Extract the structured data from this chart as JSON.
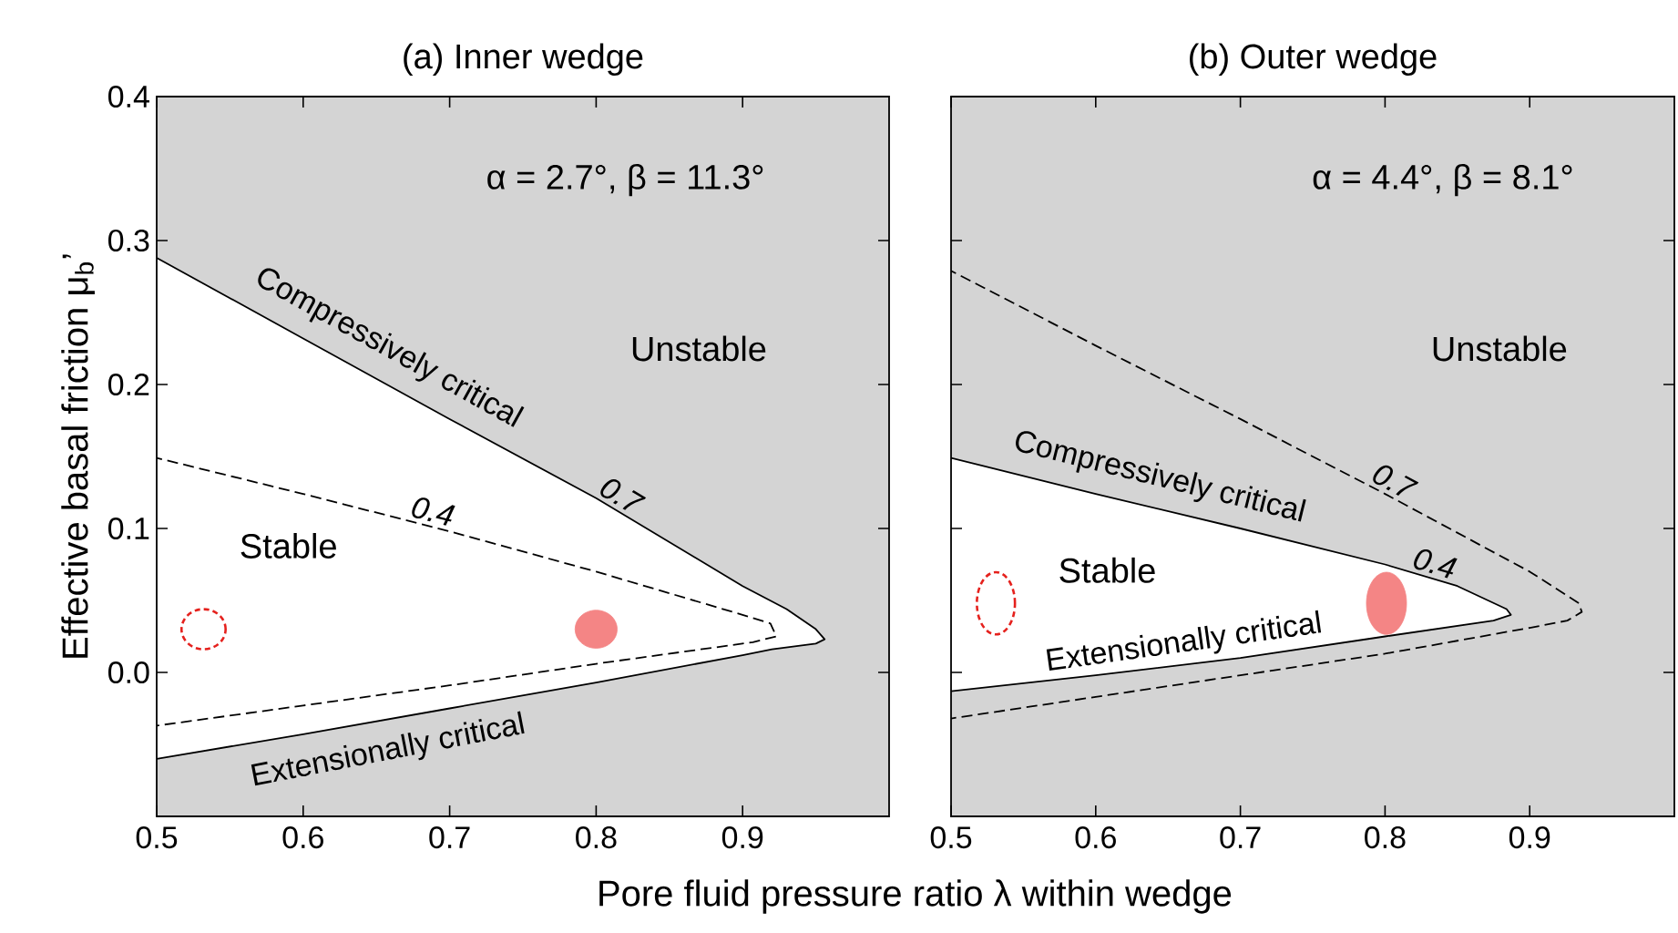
{
  "chart_data": [
    {
      "type": "line",
      "title": "(a) Inner wedge",
      "xlabel": "Pore fluid pressure ratio λ within wedge",
      "ylabel": "Effective basal friction μ$_{b}$’",
      "xlim": [
        0.5,
        1.0
      ],
      "ylim": [
        -0.1,
        0.4
      ],
      "xticks": [
        0.5,
        0.6,
        0.7,
        0.8,
        0.9
      ],
      "yticks": [
        {
          "value": 0,
          "label": "0.0"
        },
        0.1,
        0.2,
        0.3,
        0.4
      ],
      "bands": [
        {
          "axis": "y",
          "from": -0.1,
          "to": 0.4,
          "color": "#d4d4d4"
        }
      ],
      "series": [
        {
          "name": "0.7",
          "line_style": "solid",
          "color": "#000000",
          "x": [
            0.5,
            0.6,
            0.7,
            0.8,
            0.9,
            0.93,
            0.95,
            0.956,
            0.95,
            0.92,
            0.9,
            0.8,
            0.7,
            0.6,
            0.5
          ],
          "values": [
            0.288,
            0.232,
            0.176,
            0.121,
            0.06,
            0.044,
            0.03,
            0.023,
            0.02,
            0.016,
            0.012,
            -0.007,
            -0.025,
            -0.043,
            -0.06
          ]
        },
        {
          "name": "0.4",
          "line_style": "dashed",
          "color": "#000000",
          "x": [
            0.5,
            0.6,
            0.7,
            0.8,
            0.9,
            0.919,
            0.923,
            0.907,
            0.8,
            0.7,
            0.6,
            0.5
          ],
          "values": [
            0.149,
            0.124,
            0.098,
            0.07,
            0.04,
            0.034,
            0.025,
            0.021,
            0.006,
            -0.009,
            -0.023,
            -0.037
          ]
        },
        {
          "type": "scatter",
          "marker": "circle",
          "line_style": "dashed",
          "color": "#e5211d",
          "x": [
            0.532
          ],
          "values": [
            0.03
          ]
        },
        {
          "type": "scatter",
          "marker": "circle",
          "line_style": "solid",
          "color": "#f48585",
          "x": [
            0.8
          ],
          "values": [
            0.03
          ]
        }
      ],
      "annotations": [
        "Unstable",
        "Stable",
        "α = 2.7°, β = 11.3°",
        "Compressively critical",
        "Extensionally critical"
      ],
      "grid": false
    },
    {
      "type": "line",
      "title": "(b) Outer wedge",
      "xlim": [
        0.5,
        1.0
      ],
      "ylim": [
        -0.1,
        0.4
      ],
      "xticks": [
        0.5,
        0.6,
        0.7,
        0.8,
        0.9
      ],
      "yticks": [
        0,
        0.1,
        0.2,
        0.3,
        0.4
      ],
      "tick_labels": "x",
      "bands": [
        {
          "axis": "y",
          "from": -0.1,
          "to": 0.4,
          "color": "#d4d4d4"
        }
      ],
      "series": [
        {
          "name": "0.4",
          "line_style": "solid",
          "color": "#000000",
          "x": [
            0.5,
            0.6,
            0.7,
            0.8,
            0.85,
            0.884,
            0.887,
            0.875,
            0.8,
            0.7,
            0.6,
            0.5
          ],
          "values": [
            0.149,
            0.124,
            0.1,
            0.075,
            0.06,
            0.044,
            0.04,
            0.036,
            0.025,
            0.01,
            -0.002,
            -0.013
          ]
        },
        {
          "name": "0.7",
          "line_style": "dashed",
          "color": "#000000",
          "x": [
            0.5,
            0.6,
            0.7,
            0.8,
            0.9,
            0.934,
            0.936,
            0.926,
            0.9,
            0.8,
            0.7,
            0.6,
            0.5
          ],
          "values": [
            0.279,
            0.227,
            0.176,
            0.124,
            0.07,
            0.048,
            0.042,
            0.036,
            0.031,
            0.013,
            -0.002,
            -0.017,
            -0.032
          ]
        },
        {
          "type": "scatter",
          "marker": "circle",
          "line_style": "dashed",
          "color": "#e5211d",
          "x": [
            0.531
          ],
          "values": [
            0.048
          ]
        },
        {
          "type": "scatter",
          "marker": "circle",
          "line_style": "solid",
          "color": "#f48585",
          "x": [
            0.801
          ],
          "values": [
            0.048
          ]
        }
      ],
      "annotations": [
        "Unstable",
        "Stable",
        "α = 4.4°, β = 8.1°",
        "Compressively critical",
        "Extensionally critical"
      ],
      "grid": false
    }
  ]
}
